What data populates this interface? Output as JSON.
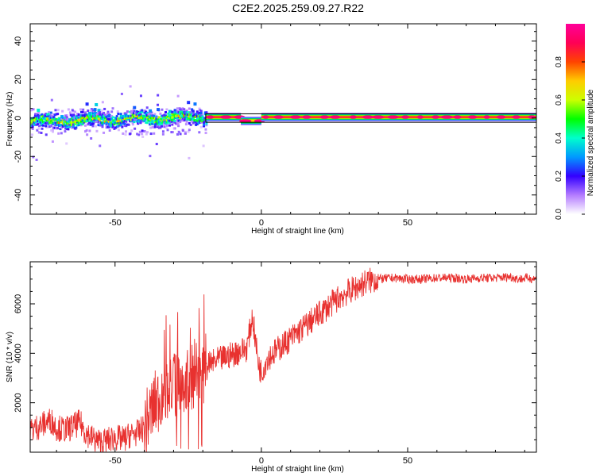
{
  "title": "C2E2.2025.259.09.27.R22",
  "chart_data": [
    {
      "type": "heatmap",
      "xlabel": "Height of straight line (km)",
      "ylabel": "Frequency (Hz)",
      "xlim": [
        -79,
        94
      ],
      "ylim": [
        -50,
        49
      ],
      "xticks": [
        -50,
        0,
        50
      ],
      "yticks": [
        -40,
        -20,
        0,
        20,
        40
      ],
      "colorbar": {
        "label": "Normalized spectral amplitude",
        "range": [
          0,
          1
        ],
        "ticks": [
          "0.0",
          "0.2",
          "0.4",
          "0.6",
          "0.8"
        ],
        "colormap": [
          "#ffffff",
          "#b47cff",
          "#3300ff",
          "#0099ff",
          "#00ffcc",
          "#00ff00",
          "#ccff00",
          "#ffcc00",
          "#ff4400",
          "#ff0055",
          "#ff0099"
        ]
      },
      "ridge": {
        "description_free": true,
        "segments": [
          {
            "x0": -79,
            "x1": -19,
            "y": -2,
            "amplitude": 0.55,
            "noisy": true
          },
          {
            "x0": -19,
            "x1": -7,
            "y": 0.5,
            "amplitude": 0.85,
            "noisy": false
          },
          {
            "x0": -7,
            "x1": 0,
            "y": -1.5,
            "amplitude": 0.7,
            "noisy": false
          },
          {
            "x0": 0,
            "x1": 94,
            "y": 0.5,
            "amplitude": 0.85,
            "noisy": false
          }
        ]
      }
    },
    {
      "type": "line",
      "xlabel": "Height of straight line (km)",
      "ylabel": "SNR (10 * v/v)",
      "xlim": [
        -79,
        94
      ],
      "ylim": [
        0,
        7700
      ],
      "xticks": [
        -50,
        0,
        50
      ],
      "yticks": [
        2000,
        4000,
        6000
      ],
      "color": "#e8312f",
      "series": [
        {
          "x": [
            -79,
            -75,
            -72,
            -70,
            -67,
            -65,
            -62,
            -60,
            -57,
            -55,
            -52,
            -50,
            -47,
            -45,
            -42,
            -40,
            -37,
            -35,
            -33,
            -31,
            -29,
            -27,
            -25,
            -23,
            -21,
            -19,
            -17,
            -15,
            -13,
            -11,
            -9,
            -7,
            -5,
            -3,
            -2,
            -1,
            0,
            2,
            4,
            6,
            8,
            10,
            12,
            15,
            18,
            21,
            24,
            27,
            30,
            33,
            36,
            40,
            45,
            50,
            55,
            60,
            65,
            70,
            75,
            80,
            85,
            88,
            91,
            94
          ],
          "y": [
            900,
            1100,
            1300,
            1000,
            900,
            1000,
            1200,
            800,
            500,
            400,
            500,
            600,
            500,
            700,
            800,
            1000,
            1800,
            2200,
            2600,
            2700,
            2800,
            3000,
            2900,
            3200,
            3300,
            3400,
            3600,
            3700,
            3800,
            3900,
            4000,
            4100,
            4200,
            5500,
            4500,
            3600,
            3200,
            3800,
            4000,
            4200,
            4400,
            4600,
            4800,
            5100,
            5400,
            5700,
            6000,
            6300,
            6500,
            6700,
            6900,
            7000,
            7050,
            7000,
            7000,
            7050,
            7050,
            7000,
            7050,
            7050,
            7100,
            7000,
            7050,
            7000
          ]
        }
      ]
    }
  ]
}
